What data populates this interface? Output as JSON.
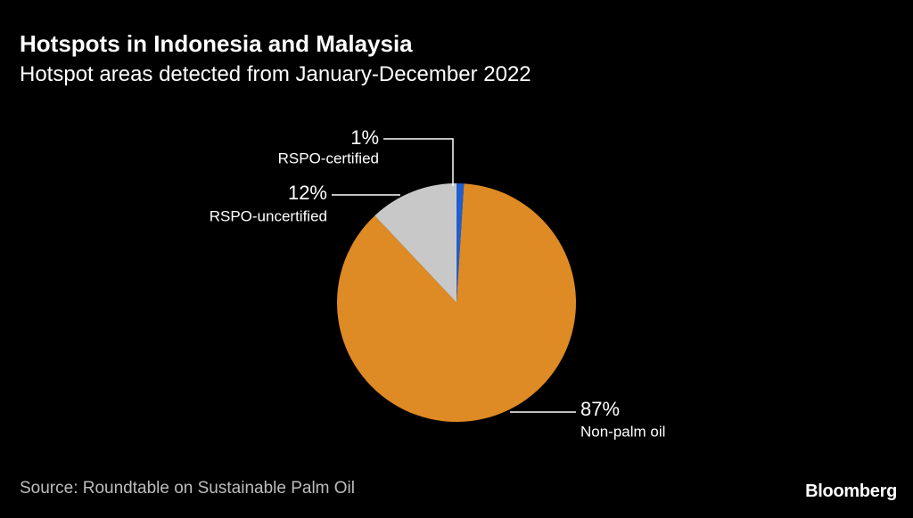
{
  "header": {
    "title": "Hotspots in Indonesia and Malaysia",
    "subtitle": "Hotspot areas detected from January-December 2022"
  },
  "footer": {
    "source": "Source: Roundtable on Sustainable Palm Oil",
    "brand": "Bloomberg"
  },
  "chart_data": {
    "type": "pie",
    "title": "Hotspots in Indonesia and Malaysia",
    "subtitle": "Hotspot areas detected from January-December 2022",
    "slices": [
      {
        "label": "RSPO-certified",
        "value": 1,
        "display": "1%",
        "color": "#1f5fcf"
      },
      {
        "label": "Non-palm oil",
        "value": 87,
        "display": "87%",
        "color": "#de8a25"
      },
      {
        "label": "RSPO-uncertified",
        "value": 12,
        "display": "12%",
        "color": "#c8c8c8"
      }
    ]
  }
}
